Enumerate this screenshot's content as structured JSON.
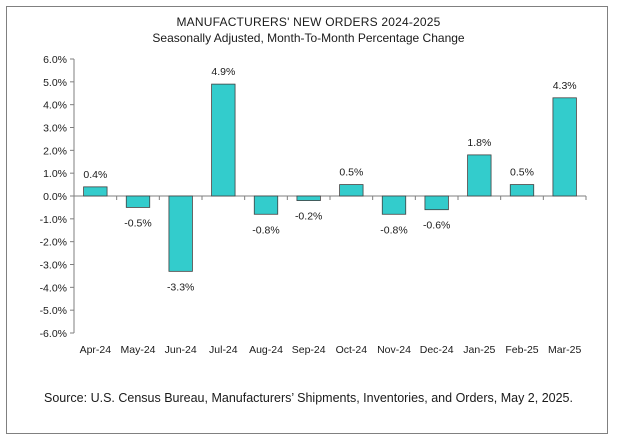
{
  "chart_data": {
    "type": "bar",
    "title": "MANUFACTURERS' NEW ORDERS 2024-2025",
    "subtitle": "Seasonally Adjusted,  Month-To-Month Percentage Change",
    "categories": [
      "Apr-24",
      "May-24",
      "Jun-24",
      "Jul-24",
      "Aug-24",
      "Sep-24",
      "Oct-24",
      "Nov-24",
      "Dec-24",
      "Jan-25",
      "Feb-25",
      "Mar-25"
    ],
    "values": [
      0.4,
      -0.5,
      -3.3,
      4.9,
      -0.8,
      -0.2,
      0.5,
      -0.8,
      -0.6,
      1.8,
      0.5,
      4.3
    ],
    "data_labels": [
      "0.4%",
      "-0.5%",
      "-3.3%",
      "4.9%",
      "-0.8%",
      "-0.2%",
      "0.5%",
      "-0.8%",
      "-0.6%",
      "1.8%",
      "0.5%",
      "4.3%"
    ],
    "y_ticks": [
      6,
      5,
      4,
      3,
      2,
      1,
      0,
      -1,
      -2,
      -3,
      -4,
      -5,
      -6
    ],
    "y_tick_labels": [
      "6.0%",
      "5.0%",
      "4.0%",
      "3.0%",
      "2.0%",
      "1.0%",
      "0.0%",
      "-1.0%",
      "-2.0%",
      "-3.0%",
      "-4.0%",
      "-5.0%",
      "-6.0%"
    ],
    "ylim": [
      -6,
      6
    ],
    "xlabel": "",
    "ylabel": "",
    "grid": false,
    "legend": "none",
    "bar_color": "#33CCCC",
    "source": "Source: U.S. Census Bureau, Manufacturers’ Shipments, Inventories, and Orders, May 2, 2025."
  }
}
